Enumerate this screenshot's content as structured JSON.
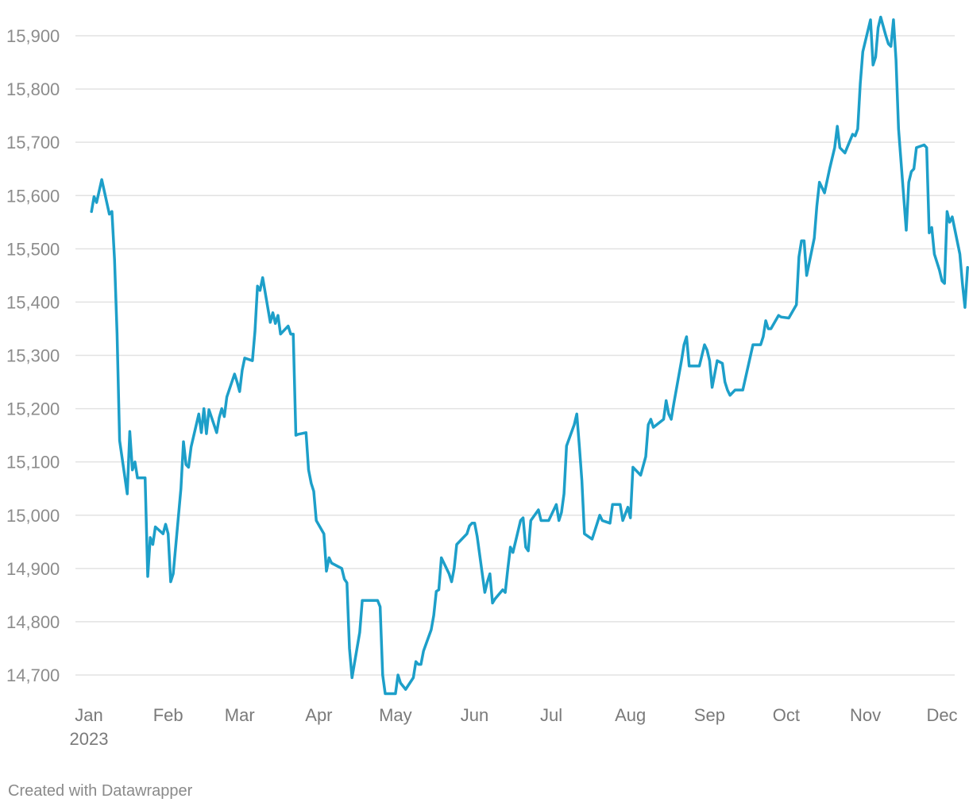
{
  "chart_data": {
    "type": "line",
    "title": "",
    "xlabel": "",
    "ylabel": "",
    "color": "#1d9fc9",
    "ylim": [
      14660,
      15940
    ],
    "yticks": [
      14700,
      14800,
      14900,
      15000,
      15100,
      15200,
      15300,
      15400,
      15500,
      15600,
      15700,
      15800,
      15900
    ],
    "ytick_labels": [
      "14,700",
      "14,800",
      "14,900",
      "15,000",
      "15,100",
      "15,200",
      "15,300",
      "15,400",
      "15,500",
      "15,600",
      "15,700",
      "15,800",
      "15,900"
    ],
    "xlim": [
      "2023-01-01",
      "2023-12-01"
    ],
    "xticks": [
      {
        "date": "2023-01-01",
        "label": "Jan",
        "sublabel": "2023"
      },
      {
        "date": "2023-02-01",
        "label": "Feb",
        "sublabel": ""
      },
      {
        "date": "2023-03-01",
        "label": "Mar",
        "sublabel": ""
      },
      {
        "date": "2023-04-01",
        "label": "Apr",
        "sublabel": ""
      },
      {
        "date": "2023-05-01",
        "label": "May",
        "sublabel": ""
      },
      {
        "date": "2023-06-01",
        "label": "Jun",
        "sublabel": ""
      },
      {
        "date": "2023-07-01",
        "label": "Jul",
        "sublabel": ""
      },
      {
        "date": "2023-08-01",
        "label": "Aug",
        "sublabel": ""
      },
      {
        "date": "2023-09-01",
        "label": "Sep",
        "sublabel": ""
      },
      {
        "date": "2023-10-01",
        "label": "Oct",
        "sublabel": ""
      },
      {
        "date": "2023-11-01",
        "label": "Nov",
        "sublabel": ""
      },
      {
        "date": "2023-12-01",
        "label": "Dec",
        "sublabel": ""
      }
    ],
    "grid": true,
    "series": [
      {
        "points": [
          [
            "2023-01-02",
            15570
          ],
          [
            "2023-01-03",
            15598
          ],
          [
            "2023-01-04",
            15587
          ],
          [
            "2023-01-06",
            15630
          ],
          [
            "2023-01-09",
            15565
          ],
          [
            "2023-01-10",
            15570
          ],
          [
            "2023-01-11",
            15480
          ],
          [
            "2023-01-12",
            15340
          ],
          [
            "2023-01-13",
            15140
          ],
          [
            "2023-01-16",
            15040
          ],
          [
            "2023-01-17",
            15157
          ],
          [
            "2023-01-18",
            15085
          ],
          [
            "2023-01-19",
            15100
          ],
          [
            "2023-01-20",
            15070
          ],
          [
            "2023-01-23",
            15070
          ],
          [
            "2023-01-24",
            14885
          ],
          [
            "2023-01-25",
            14958
          ],
          [
            "2023-01-26",
            14945
          ],
          [
            "2023-01-27",
            14978
          ],
          [
            "2023-01-30",
            14965
          ],
          [
            "2023-01-31",
            14983
          ],
          [
            "2023-02-01",
            14965
          ],
          [
            "2023-02-02",
            14875
          ],
          [
            "2023-02-03",
            14890
          ],
          [
            "2023-02-06",
            15050
          ],
          [
            "2023-02-07",
            15138
          ],
          [
            "2023-02-08",
            15095
          ],
          [
            "2023-02-09",
            15090
          ],
          [
            "2023-02-10",
            15128
          ],
          [
            "2023-02-13",
            15190
          ],
          [
            "2023-02-14",
            15155
          ],
          [
            "2023-02-15",
            15200
          ],
          [
            "2023-02-16",
            15153
          ],
          [
            "2023-02-17",
            15198
          ],
          [
            "2023-02-20",
            15155
          ],
          [
            "2023-02-21",
            15183
          ],
          [
            "2023-02-22",
            15200
          ],
          [
            "2023-02-23",
            15185
          ],
          [
            "2023-02-24",
            15222
          ],
          [
            "2023-02-27",
            15265
          ],
          [
            "2023-02-28",
            15250
          ],
          [
            "2023-03-01",
            15232
          ],
          [
            "2023-03-02",
            15272
          ],
          [
            "2023-03-03",
            15295
          ],
          [
            "2023-03-06",
            15290
          ],
          [
            "2023-03-07",
            15345
          ],
          [
            "2023-03-08",
            15430
          ],
          [
            "2023-03-09",
            15422
          ],
          [
            "2023-03-10",
            15446
          ],
          [
            "2023-03-13",
            15362
          ],
          [
            "2023-03-14",
            15380
          ],
          [
            "2023-03-15",
            15360
          ],
          [
            "2023-03-16",
            15375
          ],
          [
            "2023-03-17",
            15340
          ],
          [
            "2023-03-20",
            15355
          ],
          [
            "2023-03-21",
            15340
          ],
          [
            "2023-03-22",
            15340
          ],
          [
            "2023-03-23",
            15150
          ],
          [
            "2023-03-24",
            15152
          ],
          [
            "2023-03-27",
            15155
          ],
          [
            "2023-03-28",
            15085
          ],
          [
            "2023-03-29",
            15060
          ],
          [
            "2023-03-30",
            15045
          ],
          [
            "2023-03-31",
            14990
          ],
          [
            "2023-04-03",
            14965
          ],
          [
            "2023-04-04",
            14895
          ],
          [
            "2023-04-05",
            14920
          ],
          [
            "2023-04-06",
            14910
          ],
          [
            "2023-04-10",
            14900
          ],
          [
            "2023-04-11",
            14880
          ],
          [
            "2023-04-12",
            14873
          ],
          [
            "2023-04-13",
            14750
          ],
          [
            "2023-04-14",
            14695
          ],
          [
            "2023-04-17",
            14780
          ],
          [
            "2023-04-18",
            14840
          ],
          [
            "2023-04-24",
            14840
          ],
          [
            "2023-04-25",
            14828
          ],
          [
            "2023-04-26",
            14700
          ],
          [
            "2023-04-27",
            14665
          ],
          [
            "2023-04-28",
            14665
          ],
          [
            "2023-05-01",
            14665
          ],
          [
            "2023-05-02",
            14700
          ],
          [
            "2023-05-03",
            14685
          ],
          [
            "2023-05-05",
            14673
          ],
          [
            "2023-05-08",
            14695
          ],
          [
            "2023-05-09",
            14725
          ],
          [
            "2023-05-10",
            14720
          ],
          [
            "2023-05-11",
            14720
          ],
          [
            "2023-05-12",
            14745
          ],
          [
            "2023-05-15",
            14785
          ],
          [
            "2023-05-16",
            14812
          ],
          [
            "2023-05-17",
            14857
          ],
          [
            "2023-05-18",
            14860
          ],
          [
            "2023-05-19",
            14920
          ],
          [
            "2023-05-22",
            14890
          ],
          [
            "2023-05-23",
            14875
          ],
          [
            "2023-05-24",
            14900
          ],
          [
            "2023-05-25",
            14945
          ],
          [
            "2023-05-29",
            14965
          ],
          [
            "2023-05-30",
            14980
          ],
          [
            "2023-05-31",
            14985
          ],
          [
            "2023-06-01",
            14985
          ],
          [
            "2023-06-02",
            14960
          ],
          [
            "2023-06-05",
            14855
          ],
          [
            "2023-06-06",
            14875
          ],
          [
            "2023-06-07",
            14890
          ],
          [
            "2023-06-08",
            14835
          ],
          [
            "2023-06-09",
            14843
          ],
          [
            "2023-06-12",
            14860
          ],
          [
            "2023-06-13",
            14855
          ],
          [
            "2023-06-14",
            14900
          ],
          [
            "2023-06-15",
            14940
          ],
          [
            "2023-06-16",
            14930
          ],
          [
            "2023-06-19",
            14990
          ],
          [
            "2023-06-20",
            14995
          ],
          [
            "2023-06-21",
            14940
          ],
          [
            "2023-06-22",
            14933
          ],
          [
            "2023-06-23",
            14990
          ],
          [
            "2023-06-26",
            15010
          ],
          [
            "2023-06-27",
            14990
          ],
          [
            "2023-06-28",
            14990
          ],
          [
            "2023-06-29",
            14990
          ],
          [
            "2023-06-30",
            14990
          ],
          [
            "2023-07-03",
            15020
          ],
          [
            "2023-07-04",
            14990
          ],
          [
            "2023-07-05",
            15005
          ],
          [
            "2023-07-06",
            15040
          ],
          [
            "2023-07-07",
            15130
          ],
          [
            "2023-07-10",
            15170
          ],
          [
            "2023-07-11",
            15190
          ],
          [
            "2023-07-12",
            15130
          ],
          [
            "2023-07-13",
            15065
          ],
          [
            "2023-07-14",
            14965
          ],
          [
            "2023-07-17",
            14955
          ],
          [
            "2023-07-18",
            14970
          ],
          [
            "2023-07-20",
            15000
          ],
          [
            "2023-07-21",
            14990
          ],
          [
            "2023-07-24",
            14985
          ],
          [
            "2023-07-25",
            15020
          ],
          [
            "2023-07-28",
            15020
          ],
          [
            "2023-07-29",
            14990
          ],
          [
            "2023-07-31",
            15015
          ],
          [
            "2023-08-01",
            14995
          ],
          [
            "2023-08-02",
            15090
          ],
          [
            "2023-08-03",
            15085
          ],
          [
            "2023-08-05",
            15075
          ],
          [
            "2023-08-07",
            15110
          ],
          [
            "2023-08-08",
            15170
          ],
          [
            "2023-08-09",
            15180
          ],
          [
            "2023-08-10",
            15165
          ],
          [
            "2023-08-14",
            15180
          ],
          [
            "2023-08-15",
            15215
          ],
          [
            "2023-08-16",
            15190
          ],
          [
            "2023-08-17",
            15180
          ],
          [
            "2023-08-18",
            15210
          ],
          [
            "2023-08-21",
            15290
          ],
          [
            "2023-08-22",
            15320
          ],
          [
            "2023-08-23",
            15335
          ],
          [
            "2023-08-24",
            15280
          ],
          [
            "2023-08-25",
            15280
          ],
          [
            "2023-08-28",
            15280
          ],
          [
            "2023-08-30",
            15320
          ],
          [
            "2023-08-31",
            15310
          ],
          [
            "2023-09-01",
            15290
          ],
          [
            "2023-09-02",
            15240
          ],
          [
            "2023-09-04",
            15290
          ],
          [
            "2023-09-06",
            15285
          ],
          [
            "2023-09-07",
            15250
          ],
          [
            "2023-09-08",
            15235
          ],
          [
            "2023-09-09",
            15225
          ],
          [
            "2023-09-11",
            15235
          ],
          [
            "2023-09-14",
            15235
          ],
          [
            "2023-09-18",
            15320
          ],
          [
            "2023-09-21",
            15320
          ],
          [
            "2023-09-22",
            15335
          ],
          [
            "2023-09-23",
            15365
          ],
          [
            "2023-09-24",
            15350
          ],
          [
            "2023-09-25",
            15350
          ],
          [
            "2023-09-28",
            15375
          ],
          [
            "2023-09-29",
            15372
          ],
          [
            "2023-10-02",
            15370
          ],
          [
            "2023-10-05",
            15395
          ],
          [
            "2023-10-06",
            15485
          ],
          [
            "2023-10-07",
            15515
          ],
          [
            "2023-10-08",
            15515
          ],
          [
            "2023-10-09",
            15450
          ],
          [
            "2023-10-12",
            15520
          ],
          [
            "2023-10-13",
            15580
          ],
          [
            "2023-10-14",
            15625
          ],
          [
            "2023-10-16",
            15605
          ],
          [
            "2023-10-18",
            15650
          ],
          [
            "2023-10-20",
            15690
          ],
          [
            "2023-10-21",
            15730
          ],
          [
            "2023-10-22",
            15690
          ],
          [
            "2023-10-24",
            15680
          ],
          [
            "2023-10-27",
            15715
          ],
          [
            "2023-10-28",
            15712
          ],
          [
            "2023-10-29",
            15725
          ],
          [
            "2023-10-30",
            15810
          ],
          [
            "2023-10-31",
            15870
          ],
          [
            "2023-11-03",
            15930
          ],
          [
            "2023-11-04",
            15845
          ],
          [
            "2023-11-05",
            15860
          ],
          [
            "2023-11-06",
            15915
          ],
          [
            "2023-11-07",
            15935
          ],
          [
            "2023-11-09",
            15900
          ],
          [
            "2023-11-10",
            15885
          ],
          [
            "2023-11-11",
            15880
          ],
          [
            "2023-11-12",
            15930
          ],
          [
            "2023-11-13",
            15855
          ],
          [
            "2023-11-14",
            15725
          ],
          [
            "2023-11-17",
            15535
          ],
          [
            "2023-11-18",
            15625
          ],
          [
            "2023-11-19",
            15645
          ],
          [
            "2023-11-20",
            15650
          ],
          [
            "2023-11-21",
            15690
          ],
          [
            "2023-11-24",
            15695
          ],
          [
            "2023-11-25",
            15690
          ],
          [
            "2023-11-26",
            15530
          ],
          [
            "2023-11-27",
            15540
          ],
          [
            "2023-11-28",
            15490
          ],
          [
            "2023-11-30",
            15460
          ],
          [
            "2023-12-01",
            15440
          ],
          [
            "2023-12-02",
            15435
          ],
          [
            "2023-12-03",
            15570
          ],
          [
            "2023-12-04",
            15550
          ],
          [
            "2023-12-05",
            15560
          ],
          [
            "2023-12-08",
            15490
          ],
          [
            "2023-12-09",
            15435
          ],
          [
            "2023-12-10",
            15390
          ],
          [
            "2023-12-11",
            15465
          ]
        ]
      }
    ]
  },
  "footer": {
    "credit": "Created with Datawrapper"
  }
}
